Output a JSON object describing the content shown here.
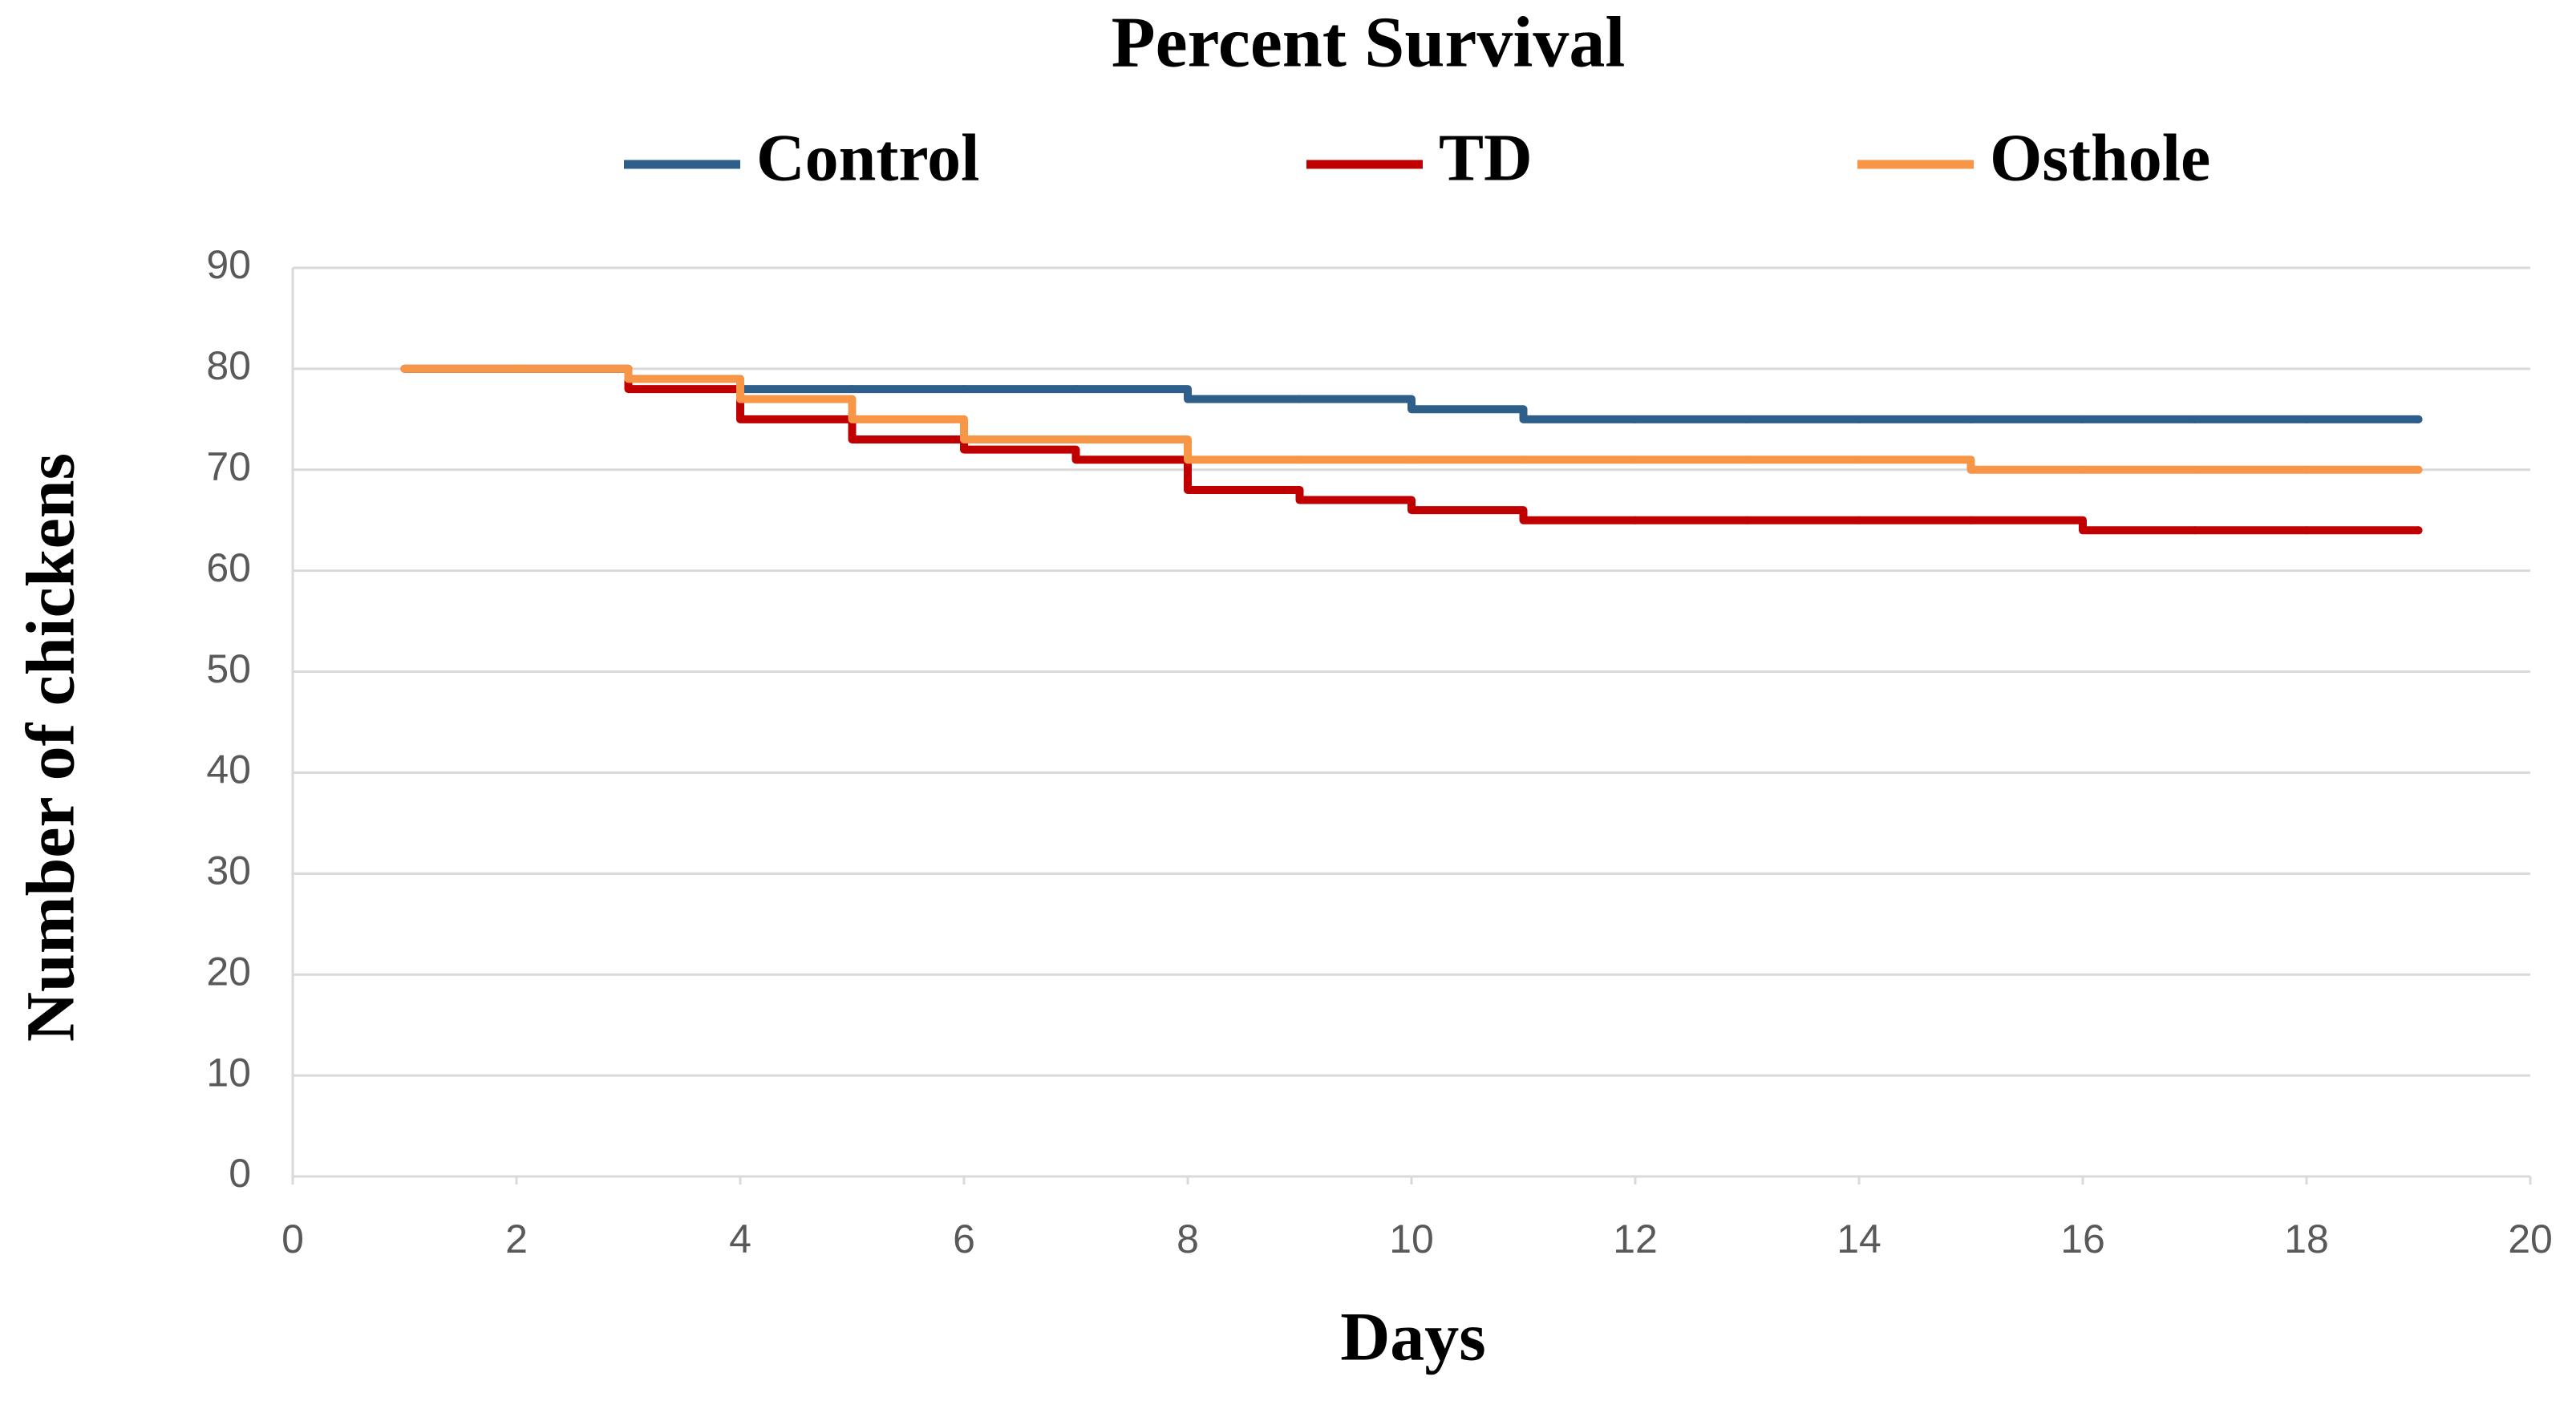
{
  "chart_data": {
    "type": "line",
    "step": "post",
    "title": "Percent Survival",
    "xlabel": "Days",
    "ylabel": "Number of chickens",
    "x": [
      1,
      2,
      3,
      4,
      5,
      6,
      7,
      8,
      9,
      10,
      11,
      12,
      13,
      14,
      15,
      16,
      17,
      18,
      19
    ],
    "series": [
      {
        "name": "Control",
        "color": "#2e5f8a",
        "values": [
          80,
          80,
          79,
          78,
          78,
          78,
          78,
          77,
          77,
          76,
          75,
          75,
          75,
          75,
          75,
          75,
          75,
          75,
          75
        ]
      },
      {
        "name": "TD",
        "color": "#c00000",
        "values": [
          80,
          80,
          78,
          75,
          73,
          72,
          71,
          68,
          67,
          66,
          65,
          65,
          65,
          65,
          65,
          64,
          64,
          64,
          64
        ]
      },
      {
        "name": "Osthole",
        "color": "#f79646",
        "values": [
          80,
          80,
          79,
          77,
          75,
          73,
          73,
          71,
          71,
          71,
          71,
          71,
          71,
          71,
          70,
          70,
          70,
          70,
          70
        ]
      }
    ],
    "xlim": [
      0,
      20
    ],
    "xticks": [
      0,
      2,
      4,
      6,
      8,
      10,
      12,
      14,
      16,
      18,
      20
    ],
    "ylim": [
      0,
      90
    ],
    "yticks": [
      0,
      10,
      20,
      30,
      40,
      50,
      60,
      70,
      80,
      90
    ],
    "grid": true,
    "legend": "top"
  }
}
